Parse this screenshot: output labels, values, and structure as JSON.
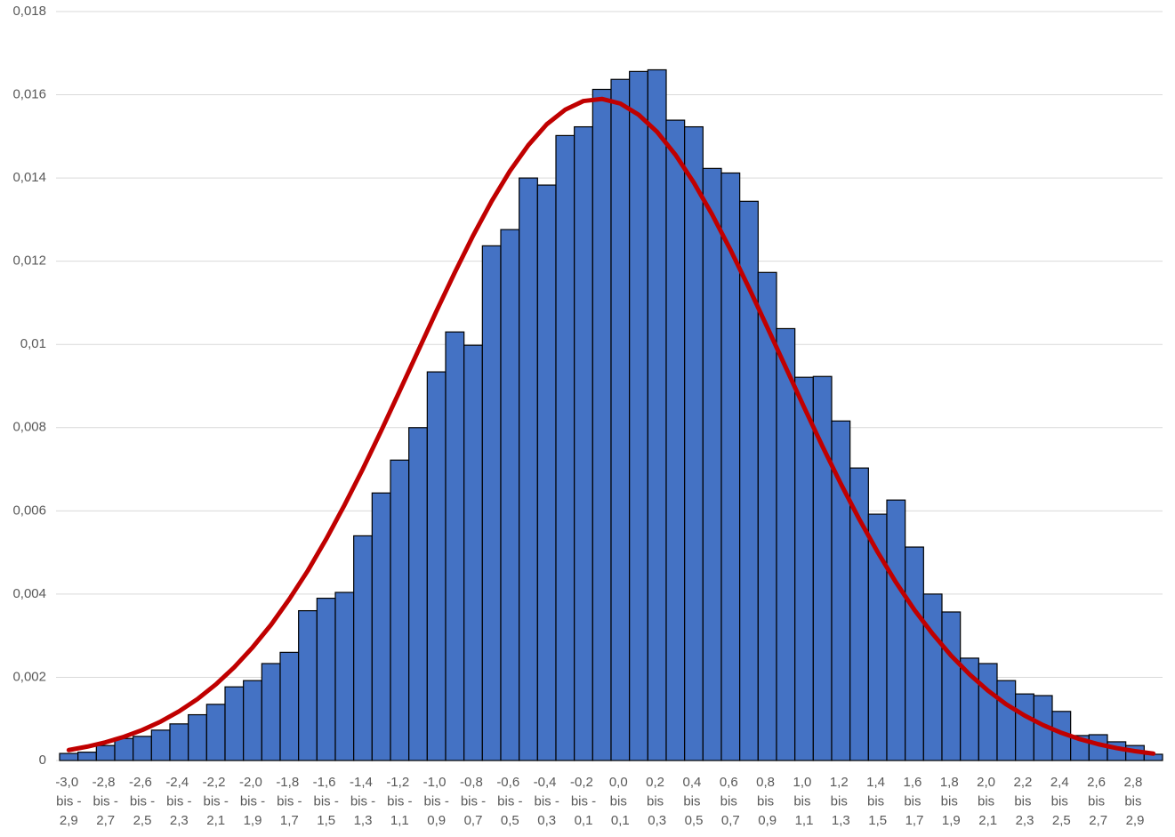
{
  "chart_data": {
    "type": "bar",
    "categories": [
      "-3,0 bis -2,9",
      null,
      "-2,8 bis -2,7",
      null,
      "-2,6 bis -2,5",
      null,
      "-2,4 bis -2,3",
      null,
      "-2,2 bis -2,1",
      null,
      "-2,0 bis -1,9",
      null,
      "-1,8 bis -1,7",
      null,
      "-1,6 bis -1,5",
      null,
      "-1,4 bis -1,3",
      null,
      "-1,2 bis -1,1",
      null,
      "-1,0 bis -0,9",
      null,
      "-0,8 bis -0,7",
      null,
      "-0,6 bis -0,5",
      null,
      "-0,4 bis -0,3",
      null,
      "-0,2 bis -0,1",
      null,
      "0,0 bis 0,1",
      null,
      "0,2 bis 0,3",
      null,
      "0,4 bis 0,5",
      null,
      "0,6 bis 0,7",
      null,
      "0,8 bis 0,9",
      null,
      "1,0 bis 1,1",
      null,
      "1,2 bis 1,3",
      null,
      "1,4 bis 1,5",
      null,
      "1,6 bis 1,7",
      null,
      "1,8 bis 1,9",
      null,
      "2,0 bis 2,1",
      null,
      "2,2 bis 2,3",
      null,
      "2,4 bis 2,5",
      null,
      "2,6 bis 2,7",
      null,
      "2,8 bis 2,9",
      null
    ],
    "series": [
      {
        "type": "bar",
        "color": "#4472c4",
        "values": [
          0.00017,
          0.0002,
          0.00036,
          0.00053,
          0.00058,
          0.00073,
          0.00088,
          0.0011,
          0.00135,
          0.00177,
          0.00192,
          0.00233,
          0.0026,
          0.0036,
          0.0039,
          0.00404,
          0.0054,
          0.00643,
          0.00722,
          0.008,
          0.00934,
          0.0103,
          0.00998,
          0.01237,
          0.01276,
          0.014,
          0.01383,
          0.01502,
          0.01523,
          0.01613,
          0.01637,
          0.01656,
          0.0166,
          0.01539,
          0.01523,
          0.01423,
          0.01412,
          0.01344,
          0.01173,
          0.01038,
          0.00921,
          0.00923,
          0.00816,
          0.00703,
          0.00592,
          0.00626,
          0.00513,
          0.004,
          0.00357,
          0.00246,
          0.00233,
          0.00192,
          0.0016,
          0.00156,
          0.00118,
          0.0006,
          0.00062,
          0.00045,
          0.00036,
          0.00015
        ]
      },
      {
        "type": "line",
        "color": "#c00000",
        "values": [
          0.000251,
          0.000334,
          0.000438,
          0.00057,
          0.000734,
          0.000936,
          0.001182,
          0.001477,
          0.001829,
          0.00224,
          0.00272,
          0.00326,
          0.00388,
          0.00456,
          0.00532,
          0.00614,
          0.00701,
          0.00793,
          0.00888,
          0.00984,
          0.0108,
          0.01173,
          0.01262,
          0.01344,
          0.01417,
          0.01479,
          0.01529,
          0.01564,
          0.01585,
          0.0159,
          0.01579,
          0.01552,
          0.01511,
          0.01456,
          0.01389,
          0.01312,
          0.01227,
          0.01136,
          0.01041,
          0.00945,
          0.00849,
          0.00755,
          0.00665,
          0.0058,
          0.00501,
          0.00428,
          0.00362,
          0.00304,
          0.00252,
          0.00207,
          0.00168,
          0.00135,
          0.00108,
          0.000851,
          0.000665,
          0.000514,
          0.000393,
          0.000298,
          0.000224,
          0.000166
        ]
      }
    ],
    "ylim": [
      0,
      0.018
    ],
    "yticks": [
      0,
      {
        "value": 0.002,
        "label": "0,002"
      },
      {
        "value": 0.004,
        "label": "0,004"
      },
      {
        "value": 0.006,
        "label": "0,006"
      },
      {
        "value": 0.008,
        "label": "0,008"
      },
      {
        "value": 0.01,
        "label": "0,01"
      },
      {
        "value": 0.012,
        "label": "0,012"
      },
      {
        "value": 0.014,
        "label": "0,014"
      },
      {
        "value": 0.016,
        "label": "0,016"
      },
      {
        "value": 0.018,
        "label": "0,018"
      }
    ],
    "grid": true
  }
}
